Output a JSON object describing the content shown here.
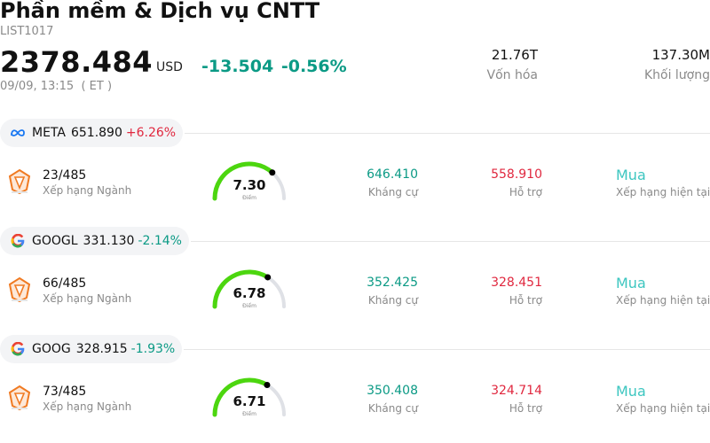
{
  "header": {
    "title": "Phần mềm & Dịch vụ CNTT",
    "code": "LIST1017",
    "price": "2378.484",
    "currency": "USD",
    "change": "-13.504",
    "change_pct": "-0.56%",
    "time": "09/09, 13:15  ( ET )",
    "market_cap": {
      "value": "21.76T",
      "label": "Vốn hóa"
    },
    "volume": {
      "value": "137.30M",
      "label": "Khối lượng"
    }
  },
  "colors": {
    "down": "#0b9a85",
    "up": "#e0283f",
    "gauge_fill": "#4cd60f",
    "gauge_track": "#dfe1e6",
    "buy": "#3dc6c0"
  },
  "rows": [
    {
      "logo": "meta-logo-icon",
      "ticker": "META",
      "price": "651.890",
      "change": "+6.26%",
      "direction": "up",
      "rank": "23/485",
      "rank_label": "Xếp hạng Ngành",
      "score": "7.30",
      "score_value": 7.3,
      "score_label": "Điểm",
      "resistance": "646.410",
      "resistance_label": "Kháng cự",
      "support": "558.910",
      "support_label": "Hỗ trợ",
      "recommendation": "Mua",
      "recommendation_label": "Xếp hạng hiện tại"
    },
    {
      "logo": "google-logo-icon",
      "ticker": "GOOGL",
      "price": "331.130",
      "change": "-2.14%",
      "direction": "down",
      "rank": "66/485",
      "rank_label": "Xếp hạng Ngành",
      "score": "6.78",
      "score_value": 6.78,
      "score_label": "Điểm",
      "resistance": "352.425",
      "resistance_label": "Kháng cự",
      "support": "328.451",
      "support_label": "Hỗ trợ",
      "recommendation": "Mua",
      "recommendation_label": "Xếp hạng hiện tại"
    },
    {
      "logo": "google-logo-icon",
      "ticker": "GOOG",
      "price": "328.915",
      "change": "-1.93%",
      "direction": "down",
      "rank": "73/485",
      "rank_label": "Xếp hạng Ngành",
      "score": "6.71",
      "score_value": 6.71,
      "score_label": "Điểm",
      "resistance": "350.408",
      "resistance_label": "Kháng cự",
      "support": "324.714",
      "support_label": "Hỗ trợ",
      "recommendation": "Mua",
      "recommendation_label": "Xếp hạng hiện tại"
    }
  ]
}
